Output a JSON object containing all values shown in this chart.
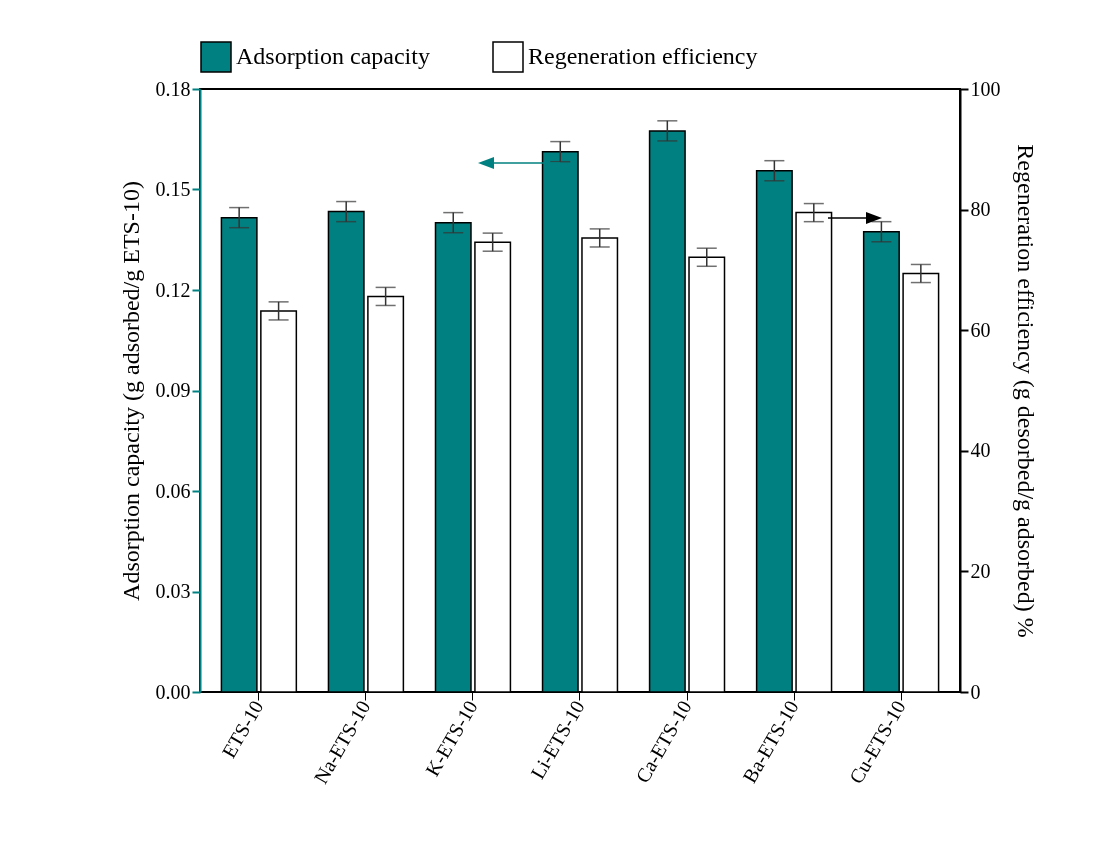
{
  "chart_data": {
    "type": "bar",
    "categories": [
      "ETS-10",
      "Na-ETS-10",
      "K-ETS-10",
      "Li-ETS-10",
      "Ca-ETS-10",
      "Ba-ETS-10",
      "Cu-ETS-10"
    ],
    "series": [
      {
        "name": "Adsorption capacity",
        "color": "#008080",
        "values": [
          0.1416,
          0.1434,
          0.1401,
          0.1613,
          0.1675,
          0.1556,
          0.1374
        ],
        "errors": [
          0.003,
          0.003,
          0.003,
          0.003,
          0.003,
          0.003,
          0.003
        ]
      },
      {
        "name": "Regeneration efficiency",
        "color": "#ffffff",
        "axis": "y2",
        "values": [
          63.2,
          65.6,
          74.6,
          75.3,
          72.1,
          79.5,
          69.4
        ],
        "errors": [
          1.5,
          1.5,
          1.5,
          1.5,
          1.5,
          1.5,
          1.5
        ]
      }
    ],
    "ylabel": "Adsorption capacity (g adsorbed/g ETS-10)",
    "y2label": "Regeneration efficiency (g desorbed/g adsorbed) %",
    "ylim": [
      0,
      0.18
    ],
    "yticks": [
      {
        "value": 0,
        "label": "0.00"
      },
      {
        "value": 0.03,
        "label": "0.03"
      },
      {
        "value": 0.06,
        "label": "0.06"
      },
      {
        "value": 0.09,
        "label": "0.09"
      },
      {
        "value": 0.12,
        "label": "0.12"
      },
      {
        "value": 0.15,
        "label": "0.15"
      },
      {
        "value": 0.18,
        "label": "0.18"
      }
    ],
    "y2lim": [
      0,
      100
    ],
    "y2ticks": [
      0,
      20,
      40,
      60,
      80,
      100
    ],
    "legend": "top",
    "grid": false
  }
}
